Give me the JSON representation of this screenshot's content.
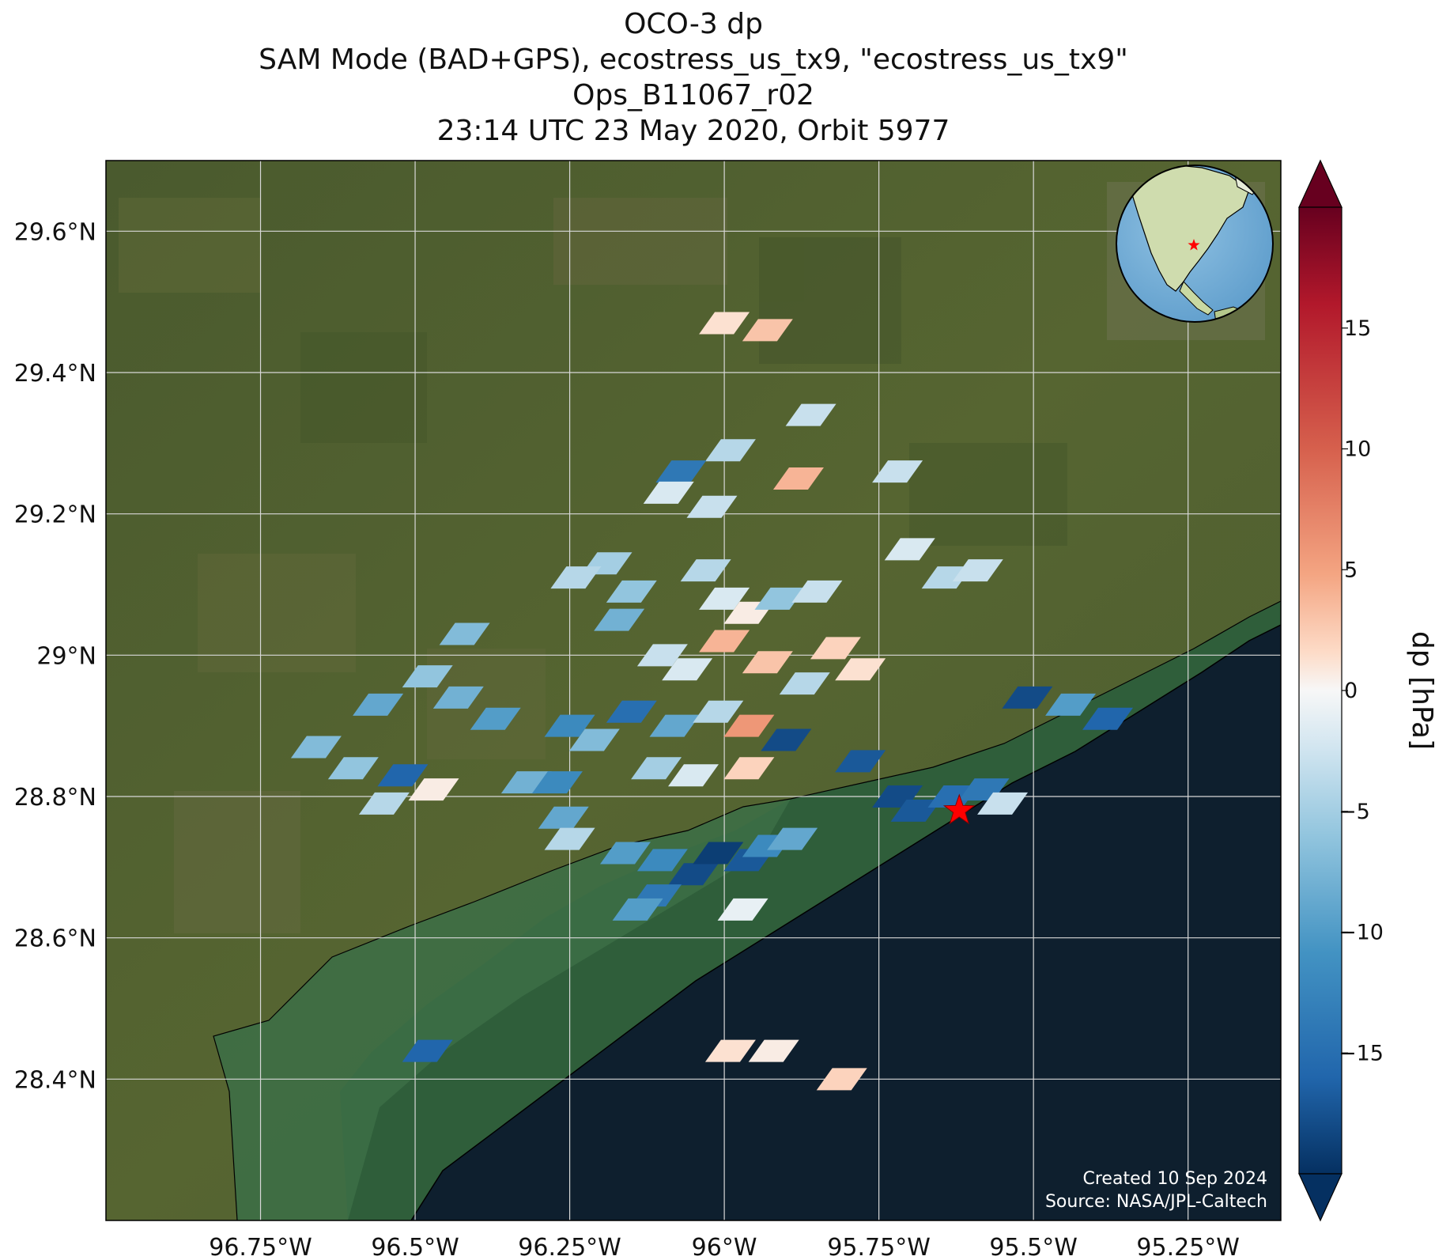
{
  "title": {
    "line1": "OCO-3 dp",
    "line2": "SAM Mode (BAD+GPS), ecostress_us_tx9, \"ecostress_us_tx9\"",
    "line3": "Ops_B11067_r02",
    "line4": "23:14 UTC 23 May 2020, Orbit 5977"
  },
  "map": {
    "lon_range": [
      -97.0,
      -95.1
    ],
    "lat_range": [
      28.2,
      29.7
    ],
    "lon_ticks": [
      -96.75,
      -96.5,
      -96.25,
      -96.0,
      -95.75,
      -95.5,
      -95.25
    ],
    "lat_ticks": [
      28.4,
      28.6,
      28.8,
      29.0,
      29.2,
      29.4,
      29.6
    ],
    "lon_tick_labels": [
      "96.75°W",
      "96.5°W",
      "96.25°W",
      "96°W",
      "95.75°W",
      "95.5°W",
      "95.25°W"
    ],
    "lat_tick_labels": [
      "28.4°N",
      "28.6°N",
      "28.8°N",
      "29°N",
      "29.2°N",
      "29.4°N",
      "29.6°N"
    ],
    "target": {
      "lon": -95.62,
      "lat": 28.78,
      "marker": "star",
      "color": "#ff0000"
    },
    "credits": [
      "Created 10 Sep 2024",
      "Source: NASA/JPL-Caltech"
    ],
    "inset_globe": {
      "projection": "orthographic",
      "region": "North America",
      "marker": "star",
      "marker_color": "#ff0000"
    }
  },
  "colorbar": {
    "label": "dp [hPa]",
    "ticks": [
      15,
      10,
      5,
      0,
      -5,
      -10,
      -15
    ],
    "tick_labels": [
      "15",
      "10",
      "5",
      "0",
      "−5",
      "−10",
      "−15"
    ],
    "range": [
      -20,
      20
    ],
    "colormap": "RdBu_r",
    "extend": "both"
  },
  "chart_data": {
    "type": "heatmap",
    "xlabel": "",
    "ylabel": "",
    "series": [
      {
        "name": "",
        "points": [
          {
            "lon": -96.0,
            "lat": 29.47,
            "dp": 2
          },
          {
            "lon": -95.93,
            "lat": 29.46,
            "dp": 4
          },
          {
            "lon": -95.86,
            "lat": 29.34,
            "dp": -3
          },
          {
            "lon": -95.99,
            "lat": 29.29,
            "dp": -4
          },
          {
            "lon": -96.07,
            "lat": 29.26,
            "dp": -14
          },
          {
            "lon": -96.09,
            "lat": 29.23,
            "dp": -2
          },
          {
            "lon": -96.02,
            "lat": 29.21,
            "dp": -3
          },
          {
            "lon": -95.88,
            "lat": 29.25,
            "dp": 5
          },
          {
            "lon": -95.72,
            "lat": 29.26,
            "dp": -3
          },
          {
            "lon": -96.19,
            "lat": 29.13,
            "dp": -5
          },
          {
            "lon": -96.24,
            "lat": 29.11,
            "dp": -4
          },
          {
            "lon": -96.15,
            "lat": 29.09,
            "dp": -6
          },
          {
            "lon": -96.03,
            "lat": 29.12,
            "dp": -4
          },
          {
            "lon": -96.0,
            "lat": 29.08,
            "dp": -2
          },
          {
            "lon": -95.96,
            "lat": 29.06,
            "dp": 1
          },
          {
            "lon": -95.91,
            "lat": 29.08,
            "dp": -6
          },
          {
            "lon": -95.85,
            "lat": 29.09,
            "dp": -3
          },
          {
            "lon": -95.7,
            "lat": 29.15,
            "dp": -2
          },
          {
            "lon": -95.64,
            "lat": 29.11,
            "dp": -4
          },
          {
            "lon": -95.59,
            "lat": 29.12,
            "dp": -3
          },
          {
            "lon": -96.17,
            "lat": 29.05,
            "dp": -8
          },
          {
            "lon": -96.1,
            "lat": 29.0,
            "dp": -3
          },
          {
            "lon": -96.06,
            "lat": 28.98,
            "dp": -2
          },
          {
            "lon": -96.0,
            "lat": 29.02,
            "dp": 5
          },
          {
            "lon": -95.93,
            "lat": 28.99,
            "dp": 4
          },
          {
            "lon": -95.87,
            "lat": 28.96,
            "dp": -4
          },
          {
            "lon": -95.82,
            "lat": 29.01,
            "dp": 3
          },
          {
            "lon": -95.78,
            "lat": 28.98,
            "dp": 2
          },
          {
            "lon": -96.42,
            "lat": 29.03,
            "dp": -7
          },
          {
            "lon": -96.48,
            "lat": 28.97,
            "dp": -6
          },
          {
            "lon": -96.56,
            "lat": 28.93,
            "dp": -9
          },
          {
            "lon": -96.43,
            "lat": 28.94,
            "dp": -8
          },
          {
            "lon": -96.37,
            "lat": 28.91,
            "dp": -10
          },
          {
            "lon": -96.25,
            "lat": 28.9,
            "dp": -12
          },
          {
            "lon": -96.21,
            "lat": 28.88,
            "dp": -7
          },
          {
            "lon": -96.15,
            "lat": 28.92,
            "dp": -15
          },
          {
            "lon": -96.08,
            "lat": 28.9,
            "dp": -9
          },
          {
            "lon": -96.01,
            "lat": 28.92,
            "dp": -4
          },
          {
            "lon": -95.96,
            "lat": 28.9,
            "dp": 7
          },
          {
            "lon": -95.9,
            "lat": 28.88,
            "dp": -18
          },
          {
            "lon": -96.66,
            "lat": 28.87,
            "dp": -7
          },
          {
            "lon": -96.6,
            "lat": 28.84,
            "dp": -6
          },
          {
            "lon": -96.52,
            "lat": 28.83,
            "dp": -16
          },
          {
            "lon": -96.47,
            "lat": 28.81,
            "dp": 1
          },
          {
            "lon": -96.32,
            "lat": 28.82,
            "dp": -8
          },
          {
            "lon": -96.27,
            "lat": 28.82,
            "dp": -12
          },
          {
            "lon": -96.11,
            "lat": 28.84,
            "dp": -5
          },
          {
            "lon": -96.05,
            "lat": 28.83,
            "dp": -2
          },
          {
            "lon": -95.96,
            "lat": 28.84,
            "dp": 3
          },
          {
            "lon": -96.55,
            "lat": 28.79,
            "dp": -4
          },
          {
            "lon": -96.26,
            "lat": 28.77,
            "dp": -9
          },
          {
            "lon": -96.25,
            "lat": 28.74,
            "dp": -4
          },
          {
            "lon": -96.16,
            "lat": 28.72,
            "dp": -10
          },
          {
            "lon": -96.1,
            "lat": 28.71,
            "dp": -12
          },
          {
            "lon": -96.05,
            "lat": 28.69,
            "dp": -18
          },
          {
            "lon": -96.11,
            "lat": 28.66,
            "dp": -14
          },
          {
            "lon": -96.14,
            "lat": 28.64,
            "dp": -10
          },
          {
            "lon": -96.01,
            "lat": 28.72,
            "dp": -19
          },
          {
            "lon": -95.96,
            "lat": 28.71,
            "dp": -17
          },
          {
            "lon": -95.93,
            "lat": 28.73,
            "dp": -12
          },
          {
            "lon": -95.89,
            "lat": 28.74,
            "dp": -9
          },
          {
            "lon": -95.97,
            "lat": 28.64,
            "dp": -1
          },
          {
            "lon": -95.78,
            "lat": 28.85,
            "dp": -17
          },
          {
            "lon": -95.72,
            "lat": 28.8,
            "dp": -18
          },
          {
            "lon": -95.69,
            "lat": 28.78,
            "dp": -17
          },
          {
            "lon": -95.63,
            "lat": 28.8,
            "dp": -15
          },
          {
            "lon": -95.58,
            "lat": 28.81,
            "dp": -14
          },
          {
            "lon": -95.55,
            "lat": 28.79,
            "dp": -3
          },
          {
            "lon": -95.51,
            "lat": 28.94,
            "dp": -18
          },
          {
            "lon": -95.44,
            "lat": 28.93,
            "dp": -10
          },
          {
            "lon": -95.38,
            "lat": 28.91,
            "dp": -16
          },
          {
            "lon": -96.48,
            "lat": 28.44,
            "dp": -16
          },
          {
            "lon": -95.99,
            "lat": 28.44,
            "dp": 2
          },
          {
            "lon": -95.92,
            "lat": 28.44,
            "dp": 1
          },
          {
            "lon": -95.81,
            "lat": 28.4,
            "dp": 3
          }
        ]
      }
    ]
  }
}
